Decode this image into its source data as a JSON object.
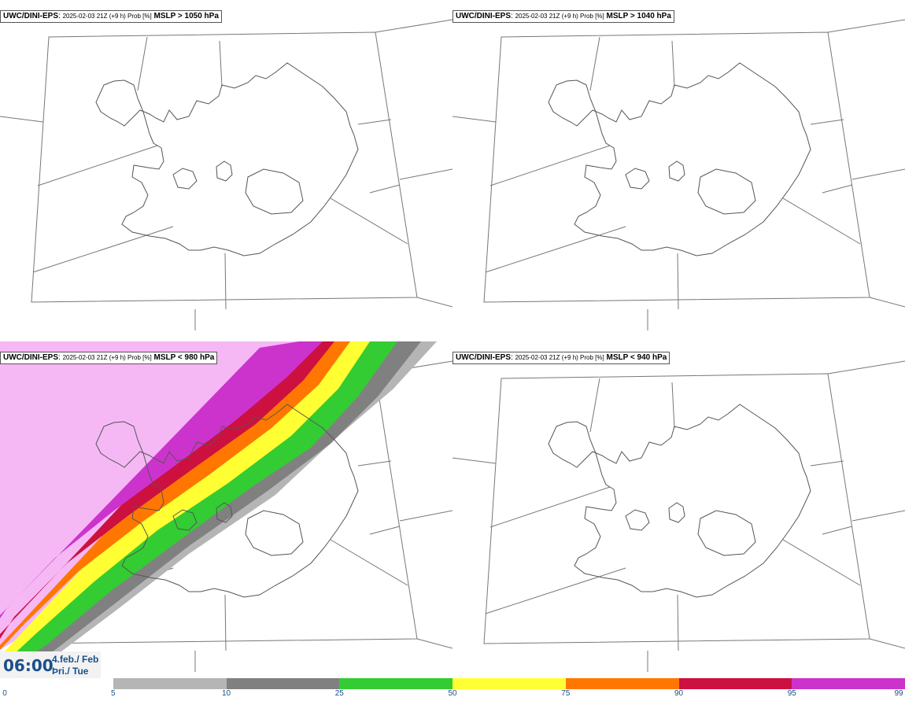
{
  "panels": [
    {
      "model": "UWC/DINI-EPS",
      "run": "2025-02-03 21Z (+9 h) Prob [%]",
      "param": "MSLP > 1050 hPa"
    },
    {
      "model": "UWC/DINI-EPS",
      "run": "2025-02-03 21Z (+9 h) Prob [%]",
      "param": "MSLP > 1040 hPa"
    },
    {
      "model": "UWC/DINI-EPS",
      "run": "2025-02-03 21Z (+9 h) Prob [%]",
      "param": "MSLP < 980 hPa"
    },
    {
      "model": "UWC/DINI-EPS",
      "run": "2025-02-03 21Z (+9 h) Prob [%]",
      "param": "MSLP < 940 hPa"
    }
  ],
  "valid": {
    "time": "06:00",
    "date": "4.feb./ Feb",
    "weekday": "Þri./ Tue"
  },
  "colorbar": {
    "ticks": [
      "0",
      "5",
      "10",
      "25",
      "50",
      "75",
      "90",
      "95",
      "99"
    ],
    "colors": [
      "#ffffff",
      "#b5b5b5",
      "#808080",
      "#33cc33",
      "#ffff33",
      "#ff7700",
      "#cc1040",
      "#cc33cc",
      "#f5b8f5"
    ]
  }
}
